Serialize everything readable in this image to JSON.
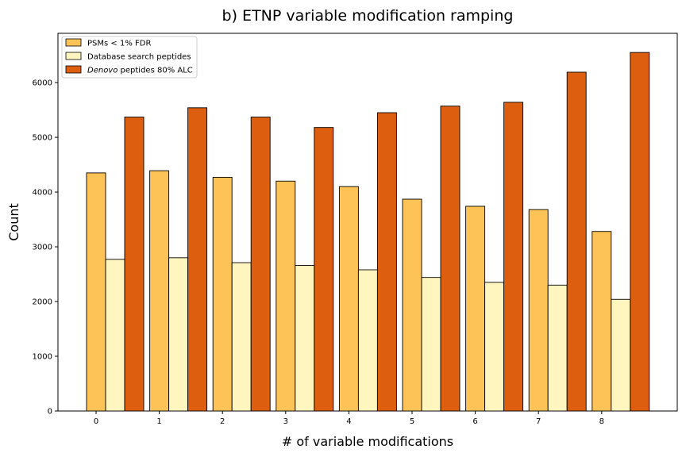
{
  "chart_data": {
    "type": "bar",
    "title": "b) ETNP variable modification ramping",
    "xlabel": "# of variable modifications",
    "ylabel": "Count",
    "categories": [
      "0",
      "1",
      "2",
      "3",
      "4",
      "5",
      "6",
      "7",
      "8"
    ],
    "ylim": [
      0,
      6900
    ],
    "yticks": [
      0,
      1000,
      2000,
      3000,
      4000,
      5000,
      6000
    ],
    "legend_position": "top-left",
    "grid": false,
    "series": [
      {
        "name": "PSMs < 1% FDR",
        "color": "#fec357",
        "values": [
          4350,
          4390,
          4270,
          4200,
          4100,
          3870,
          3740,
          3680,
          3280
        ]
      },
      {
        "name": "Database search peptides",
        "color": "#fff5be",
        "values": [
          2770,
          2800,
          2710,
          2660,
          2580,
          2440,
          2350,
          2300,
          2040
        ]
      },
      {
        "name": "Denovo peptides 80% ALC",
        "name_italic_part": "Denovo",
        "name_rest": " peptides 80% ALC",
        "color": "#dc5e0e",
        "values": [
          5370,
          5540,
          5370,
          5180,
          5450,
          5570,
          5640,
          6190,
          6550
        ]
      }
    ]
  }
}
